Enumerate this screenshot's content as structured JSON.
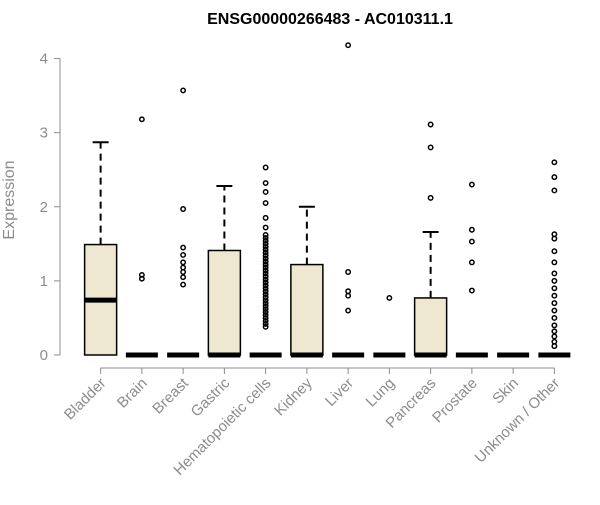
{
  "chart_data": {
    "type": "boxplot",
    "title": "ENSG00000266483 - AC010311.1",
    "ylabel": "Expression",
    "xlabel": "",
    "ylim": [
      0,
      4.25
    ],
    "yticks": [
      "0",
      "1",
      "2",
      "3",
      "4"
    ],
    "grid": false,
    "legend": "none",
    "colors": {
      "box_fill": "#ede8cf",
      "stroke": "#000000",
      "text": "#8c8c8c",
      "title": "#000000"
    },
    "categories": [
      "Bladder",
      "Brain",
      "Breast",
      "Gastric",
      "Hematopoietic cells",
      "Kidney",
      "Liver",
      "Lung",
      "Pancreas",
      "Prostate",
      "Skin",
      "Unknown / Other"
    ],
    "boxes": [
      {
        "category": "Bladder",
        "min": 0,
        "q1": 0,
        "median": 0.74,
        "q3": 1.49,
        "max": 2.87,
        "outliers": []
      },
      {
        "category": "Brain",
        "min": 0,
        "q1": 0,
        "median": 0,
        "q3": 0,
        "max": 0,
        "outliers": [
          1.03,
          1.08,
          3.18
        ]
      },
      {
        "category": "Breast",
        "min": 0,
        "q1": 0,
        "median": 0,
        "q3": 0,
        "max": 0,
        "outliers": [
          0.95,
          1.05,
          1.12,
          1.18,
          1.25,
          1.35,
          1.45,
          1.97,
          3.57
        ]
      },
      {
        "category": "Gastric",
        "min": 0,
        "q1": 0,
        "median": 0,
        "q3": 1.41,
        "max": 2.28,
        "outliers": []
      },
      {
        "category": "Hematopoietic cells",
        "min": 0,
        "q1": 0,
        "median": 0,
        "q3": 0,
        "max": 0,
        "outliers": [
          0.38,
          0.42,
          0.46,
          0.5,
          0.54,
          0.58,
          0.62,
          0.66,
          0.7,
          0.74,
          0.78,
          0.82,
          0.86,
          0.9,
          0.94,
          0.98,
          1.02,
          1.06,
          1.1,
          1.14,
          1.18,
          1.22,
          1.26,
          1.3,
          1.34,
          1.38,
          1.42,
          1.46,
          1.5,
          1.54,
          1.58,
          1.62,
          1.72,
          1.85,
          2.05,
          2.2,
          2.32,
          2.53
        ]
      },
      {
        "category": "Kidney",
        "min": 0,
        "q1": 0,
        "median": 0,
        "q3": 1.22,
        "max": 2.0,
        "outliers": []
      },
      {
        "category": "Liver",
        "min": 0,
        "q1": 0,
        "median": 0,
        "q3": 0,
        "max": 0,
        "outliers": [
          0.6,
          0.8,
          0.86,
          1.12,
          4.18
        ]
      },
      {
        "category": "Lung",
        "min": 0,
        "q1": 0,
        "median": 0,
        "q3": 0,
        "max": 0,
        "outliers": [
          0.77
        ]
      },
      {
        "category": "Pancreas",
        "min": 0,
        "q1": 0,
        "median": 0,
        "q3": 0.77,
        "max": 1.66,
        "outliers": [
          2.12,
          2.8,
          3.11
        ]
      },
      {
        "category": "Prostate",
        "min": 0,
        "q1": 0,
        "median": 0,
        "q3": 0,
        "max": 0,
        "outliers": [
          0.87,
          1.25,
          1.53,
          1.69,
          2.3
        ]
      },
      {
        "category": "Skin",
        "min": 0,
        "q1": 0,
        "median": 0,
        "q3": 0,
        "max": 0,
        "outliers": []
      },
      {
        "category": "Unknown / Other",
        "min": 0,
        "q1": 0,
        "median": 0,
        "q3": 0,
        "max": 0,
        "outliers": [
          0.12,
          0.18,
          0.25,
          0.32,
          0.4,
          0.5,
          0.6,
          0.7,
          0.8,
          0.9,
          1.0,
          1.1,
          1.25,
          1.4,
          1.57,
          1.63,
          2.22,
          2.4,
          2.6
        ]
      }
    ]
  }
}
